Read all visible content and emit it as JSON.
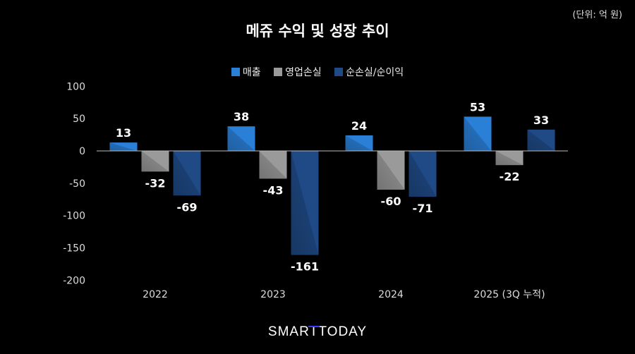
{
  "unit_label": "(단위: 억 원)",
  "logo": {
    "text_a": "SMAR",
    "text_b": "T T",
    "text_c": "ODAY",
    "full": "SMARTTODAY"
  },
  "chart_data": {
    "type": "bar",
    "title": "메쥬 수익 및 성장 추이",
    "categories": [
      "2022",
      "2023",
      "2024",
      "2025 (3Q 누적)"
    ],
    "series": [
      {
        "name": "매출",
        "values": [
          13,
          38,
          24,
          53
        ],
        "color": "#2a7fd6"
      },
      {
        "name": "영업손실",
        "values": [
          -32,
          -43,
          -60,
          -22
        ],
        "color": "#9a9a9a"
      },
      {
        "name": "순손실/순이익",
        "values": [
          -69,
          -161,
          -71,
          33
        ],
        "color": "#1f4a86"
      }
    ],
    "ylim": [
      -200,
      100
    ],
    "yticks": [
      100,
      50,
      0,
      -50,
      -100,
      -150,
      -200
    ],
    "legend": "top",
    "grid": false
  }
}
